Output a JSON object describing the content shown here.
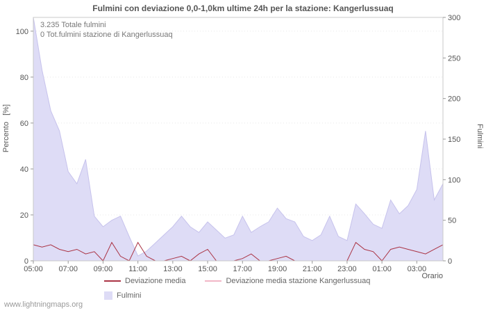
{
  "watermark": "www.lightningmaps.org",
  "chart_data": {
    "type": "area",
    "title": "Fulmini con deviazione 0,0-1,0km ultime 24h per la stazione: Kangerlussuaq",
    "xlabel": "Orario",
    "ylabel_left": "Percento   [%]",
    "ylabel_right": "Fulmini",
    "x_start": "05:00",
    "x_step_minutes": 30,
    "x_ticks": [
      "05:00",
      "07:00",
      "09:00",
      "11:00",
      "13:00",
      "15:00",
      "17:00",
      "19:00",
      "21:00",
      "23:00",
      "01:00",
      "03:00"
    ],
    "x_tick_indices": [
      0,
      4,
      8,
      12,
      16,
      20,
      24,
      28,
      32,
      36,
      40,
      44
    ],
    "y_left_ticks": [
      0,
      20,
      40,
      60,
      80,
      100
    ],
    "y_right_ticks": [
      0,
      50,
      100,
      150,
      200,
      250,
      300
    ],
    "ylim_left": [
      0,
      106
    ],
    "ylim_right": [
      0,
      300
    ],
    "grid": "horizontal-dotted",
    "legend_position": "bottom",
    "annotations": [
      "3.235 Totale fulmini",
      "0 Tot.fulmini stazione di Kangerlussuaq"
    ],
    "series": [
      {
        "name": "Fulmini",
        "type": "area",
        "axis": "right",
        "color": "#dedcf6",
        "edge_color": "#c6c2ec",
        "values": [
          300,
          235,
          185,
          160,
          110,
          95,
          125,
          55,
          42,
          50,
          55,
          30,
          6,
          12,
          22,
          32,
          42,
          55,
          42,
          35,
          48,
          38,
          28,
          32,
          55,
          35,
          42,
          48,
          65,
          52,
          48,
          30,
          25,
          32,
          55,
          30,
          25,
          70,
          58,
          45,
          40,
          75,
          58,
          68,
          88,
          160,
          75,
          95
        ]
      },
      {
        "name": "Deviazione media",
        "type": "line",
        "axis": "left",
        "color": "#aa3344",
        "values": [
          7,
          6,
          7,
          5,
          4,
          5,
          3,
          4,
          0,
          8,
          2,
          0,
          8,
          2,
          0,
          0,
          1,
          2,
          0,
          3,
          5,
          0,
          0,
          0,
          1,
          3,
          0,
          0,
          1,
          2,
          0,
          0,
          0,
          0,
          0,
          0,
          0,
          8,
          5,
          4,
          0,
          5,
          6,
          5,
          4,
          3,
          5,
          7
        ]
      },
      {
        "name": "Deviazione media stazione Kangerlussuaq",
        "type": "line",
        "axis": "left",
        "color": "#f2b6c6",
        "values": [
          0,
          0,
          0,
          0,
          0,
          0,
          0,
          0,
          0,
          0,
          0,
          0,
          0,
          0,
          0,
          0,
          0,
          0,
          0,
          0,
          0,
          0,
          0,
          0,
          0,
          0,
          0,
          0,
          0,
          0,
          0,
          0,
          0,
          0,
          0,
          0,
          0,
          0,
          0,
          0,
          0,
          0,
          0,
          0,
          0,
          0,
          0,
          0
        ]
      }
    ]
  }
}
